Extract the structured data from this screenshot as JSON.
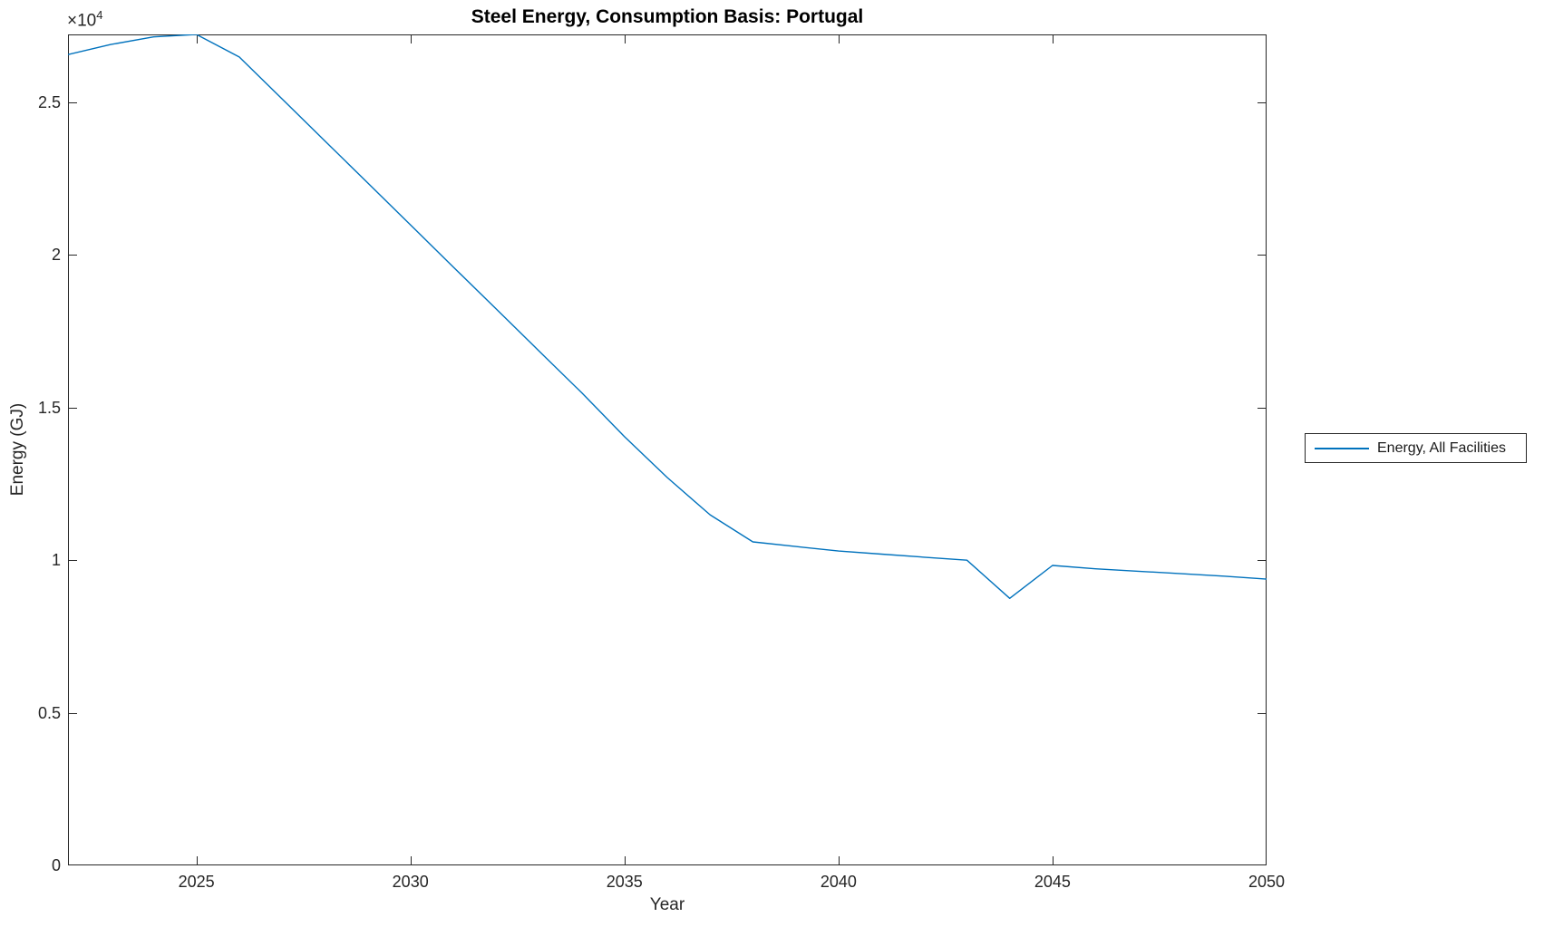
{
  "figure": {
    "title": "Steel Energy, Consumption Basis: Portugal",
    "xlabel": "Year",
    "ylabel": "Energy (GJ)",
    "y_multiplier_base": "×10",
    "y_multiplier_exponent": "4",
    "legend": {
      "entries": [
        {
          "label": "Energy, All Facilities",
          "color": "#0072BD"
        }
      ],
      "position": "right-outside"
    }
  },
  "colors": {
    "line": "#0072BD",
    "axis": "#262626",
    "tick_text": "#262626",
    "title_text": "#000000",
    "background": "#ffffff"
  },
  "chart_data": {
    "type": "line",
    "title": "Steel Energy, Consumption Basis: Portugal",
    "xlabel": "Year",
    "ylabel": "Energy (GJ)",
    "xlim": [
      2022,
      2050
    ],
    "ylim": [
      0,
      27230
    ],
    "xticks": [
      2025,
      2030,
      2035,
      2040,
      2045,
      2050
    ],
    "yticks": [
      0,
      5000,
      10000,
      15000,
      20000,
      25000
    ],
    "ytick_labels": [
      "0",
      "0.5",
      "1",
      "1.5",
      "2",
      "2.5"
    ],
    "y_scale_note": "y tick labels are in units of 1e4 GJ",
    "grid": false,
    "legend_position": "right-outside",
    "series": [
      {
        "name": "Energy, All Facilities",
        "color": "#0072BD",
        "x": [
          2022,
          2023,
          2024,
          2025,
          2026,
          2027,
          2028,
          2029,
          2030,
          2031,
          2032,
          2033,
          2034,
          2035,
          2036,
          2037,
          2038,
          2039,
          2040,
          2041,
          2042,
          2043,
          2044,
          2045,
          2046,
          2047,
          2048,
          2049,
          2050
        ],
        "y": [
          26570,
          26900,
          27150,
          27230,
          26490,
          25120,
          23740,
          22370,
          20990,
          19610,
          18240,
          16860,
          15490,
          14050,
          12710,
          11490,
          10600,
          10450,
          10300,
          10200,
          10100,
          10000,
          8750,
          9830,
          9720,
          9640,
          9560,
          9480,
          9380
        ]
      }
    ]
  }
}
